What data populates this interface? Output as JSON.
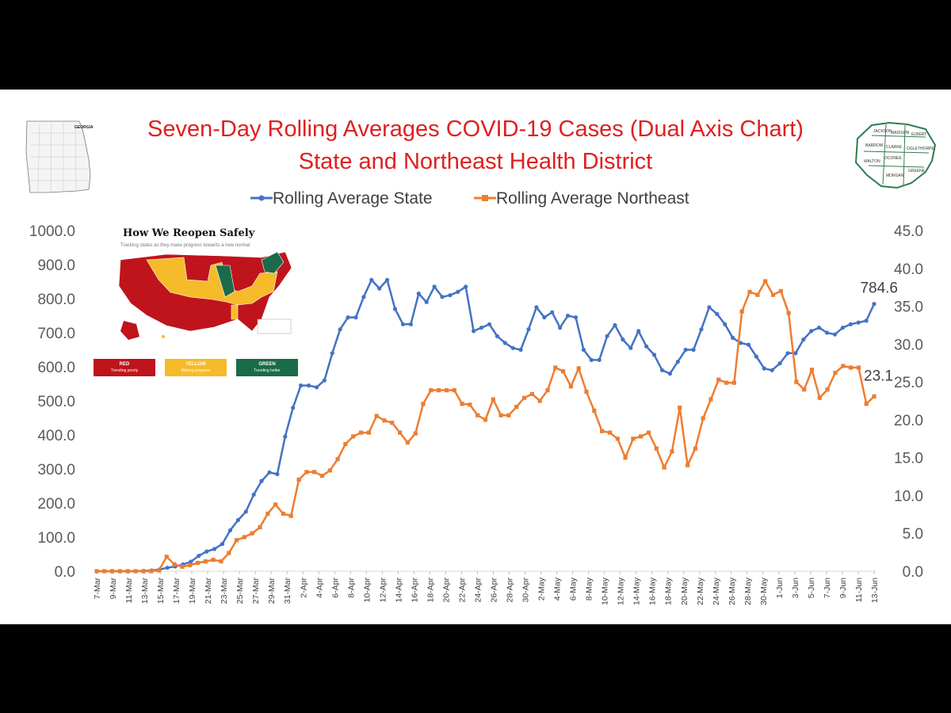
{
  "colors": {
    "background_outer": "#000000",
    "background_chart": "#ffffff",
    "title": "#e02020",
    "state_series": "#4472c4",
    "northeast_series": "#ed7d31",
    "axis_text": "#595959",
    "map_red": "#c0141c",
    "map_yellow": "#f6bb2a",
    "map_green": "#1a6b4a"
  },
  "inset_map": {
    "title": "How We Reopen Safely",
    "subtitle": "Tracking states as they make progress towards a new normal",
    "legend": [
      {
        "label": "RED",
        "sub": "Trending poorly",
        "color": "#c0141c"
      },
      {
        "label": "YELLOW",
        "sub": "Making progress",
        "color": "#f6bb2a"
      },
      {
        "label": "GREEN",
        "sub": "Trending better",
        "color": "#1a6b4a"
      }
    ]
  },
  "georgia_map": {
    "label": "GEORGIA"
  },
  "district_map": {
    "counties": [
      "JACKSON",
      "MADISON",
      "ELBERT",
      "BARROW",
      "CLARKE",
      "OGLETHORPE",
      "OCONEE",
      "WALTON",
      "MORGAN",
      "GREENE"
    ]
  },
  "chart_data": {
    "type": "line",
    "title": "Seven-Day Rolling Averages COVID-19 Cases (Dual Axis Chart)",
    "subtitle": "State and Northeast Health District",
    "xlabel": "",
    "ylabel": "",
    "legend_position": "top",
    "grid": false,
    "x_tick_labels": [
      "7-Mar",
      "9-Mar",
      "11-Mar",
      "13-Mar",
      "15-Mar",
      "17-Mar",
      "19-Mar",
      "21-Mar",
      "23-Mar",
      "25-Mar",
      "27-Mar",
      "29-Mar",
      "31-Mar",
      "2-Apr",
      "4-Apr",
      "6-Apr",
      "8-Apr",
      "10-Apr",
      "12-Apr",
      "14-Apr",
      "16-Apr",
      "18-Apr",
      "20-Apr",
      "22-Apr",
      "24-Apr",
      "26-Apr",
      "28-Apr",
      "30-Apr",
      "2-May",
      "4-May",
      "6-May",
      "8-May",
      "10-May",
      "12-May",
      "14-May",
      "16-May",
      "18-May",
      "20-May",
      "22-May",
      "24-May",
      "26-May",
      "28-May",
      "30-May",
      "1-Jun",
      "3-Jun",
      "5-Jun",
      "7-Jun",
      "9-Jun",
      "11-Jun",
      "13-Jun"
    ],
    "y_left": {
      "min": 0,
      "max": 1000,
      "step": 100,
      "tick_labels": [
        "0.0",
        "100.0",
        "200.0",
        "300.0",
        "400.0",
        "500.0",
        "600.0",
        "700.0",
        "800.0",
        "900.0",
        "1000.0"
      ]
    },
    "y_right": {
      "min": 0,
      "max": 45,
      "step": 5,
      "tick_labels": [
        "0.0",
        "5.0",
        "10.0",
        "15.0",
        "20.0",
        "25.0",
        "30.0",
        "35.0",
        "40.0",
        "45.0"
      ]
    },
    "series": [
      {
        "name": "Rolling Average State",
        "axis": "left",
        "end_label": "784.6",
        "values": [
          0,
          0,
          0,
          0,
          0,
          0,
          1,
          2,
          5,
          10,
          14,
          20,
          28,
          45,
          58,
          65,
          80,
          120,
          150,
          175,
          225,
          265,
          290,
          285,
          395,
          480,
          545,
          545,
          540,
          560,
          640,
          710,
          745,
          745,
          805,
          855,
          830,
          855,
          770,
          725,
          725,
          815,
          790,
          835,
          805,
          810,
          820,
          835,
          705,
          715,
          725,
          690,
          670,
          655,
          650,
          710,
          775,
          745,
          760,
          715,
          750,
          745,
          650,
          620,
          620,
          690,
          722,
          680,
          655,
          705,
          660,
          635,
          590,
          580,
          615,
          650,
          650,
          710,
          775,
          755,
          725,
          685,
          670,
          665,
          630,
          595,
          590,
          610,
          640,
          640,
          680,
          705,
          715,
          700,
          695,
          715,
          725,
          730,
          735,
          784.6
        ]
      },
      {
        "name": "Rolling Average Northeast",
        "axis": "right",
        "end_label": "23.1",
        "values": [
          0,
          0,
          0,
          0,
          0,
          0,
          0,
          0,
          0.1,
          1.9,
          0.9,
          0.6,
          0.8,
          1.1,
          1.3,
          1.5,
          1.3,
          2.4,
          4.1,
          4.5,
          5,
          5.8,
          7.6,
          8.8,
          7.6,
          7.3,
          12.1,
          13.1,
          13.1,
          12.6,
          13.3,
          14.8,
          16.8,
          17.8,
          18.3,
          18.3,
          20.5,
          19.9,
          19.6,
          18.3,
          17.0,
          18.2,
          22.1,
          23.9,
          23.9,
          23.9,
          23.9,
          22.1,
          22.0,
          20.6,
          20.0,
          22.7,
          20.6,
          20.6,
          21.7,
          22.9,
          23.4,
          22.5,
          23.9,
          26.9,
          26.4,
          24.4,
          26.8,
          23.7,
          21.2,
          18.5,
          18.3,
          17.5,
          15.0,
          17.5,
          17.8,
          18.3,
          16.2,
          13.7,
          15.8,
          21.6,
          14.0,
          16.2,
          20.2,
          22.7,
          25.3,
          24.9,
          24.9,
          34.3,
          36.9,
          36.5,
          38.3,
          36.5,
          37.0,
          34.1,
          25.0,
          24.0,
          26.6,
          22.9,
          24.0,
          26.2,
          27.1,
          26.9,
          26.9,
          22.1,
          23.1
        ]
      }
    ]
  }
}
